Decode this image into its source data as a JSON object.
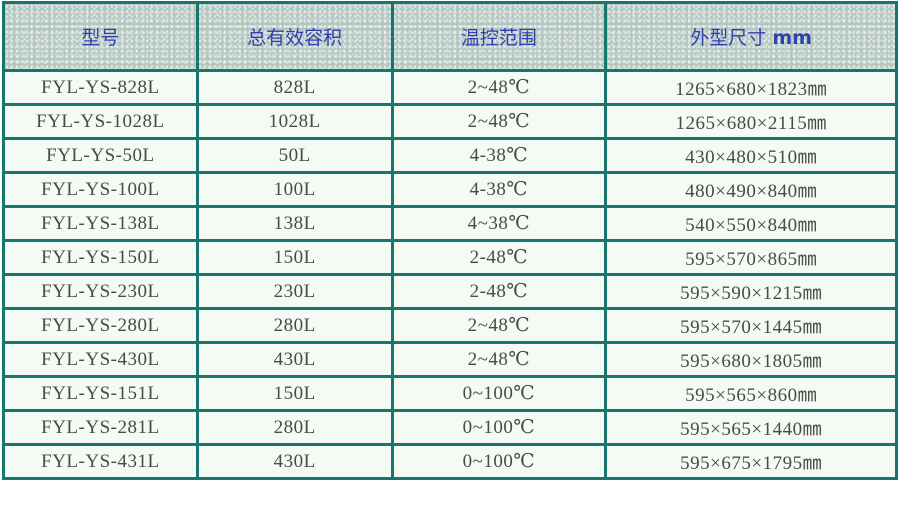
{
  "table": {
    "headers": [
      "型号",
      "总有效容积",
      "温控范围",
      "外型尺寸",
      "mm"
    ],
    "rows": [
      [
        "FYL-YS-828L",
        "828L",
        "2~48℃",
        "1265×680×1823㎜"
      ],
      [
        "FYL-YS-1028L",
        "1028L",
        "2~48℃",
        "1265×680×2115㎜"
      ],
      [
        "FYL-YS-50L",
        "50L",
        "4-38℃",
        "430×480×510㎜"
      ],
      [
        "FYL-YS-100L",
        "100L",
        "4-38℃",
        "480×490×840㎜"
      ],
      [
        "FYL-YS-138L",
        "138L",
        "4~38℃",
        "540×550×840㎜"
      ],
      [
        "FYL-YS-150L",
        "150L",
        "2-48℃",
        "595×570×865㎜"
      ],
      [
        "FYL-YS-230L",
        "230L",
        "2-48℃",
        "595×590×1215㎜"
      ],
      [
        "FYL-YS-280L",
        "280L",
        "2~48℃",
        "595×570×1445㎜"
      ],
      [
        "FYL-YS-430L",
        "430L",
        "2~48℃",
        "595×680×1805㎜"
      ],
      [
        "FYL-YS-151L",
        "150L",
        "0~100℃",
        "595×565×860㎜"
      ],
      [
        "FYL-YS-281L",
        "280L",
        "0~100℃",
        "595×565×1440㎜"
      ],
      [
        "FYL-YS-431L",
        "430L",
        "0~100℃",
        "595×675×1795㎜"
      ]
    ]
  },
  "colors": {
    "border": "#17776f",
    "header_text": "#2f3fae",
    "header_bg": "#b4c6c0",
    "row_bg": "#f4faf4",
    "text": "#4a4a4a"
  }
}
